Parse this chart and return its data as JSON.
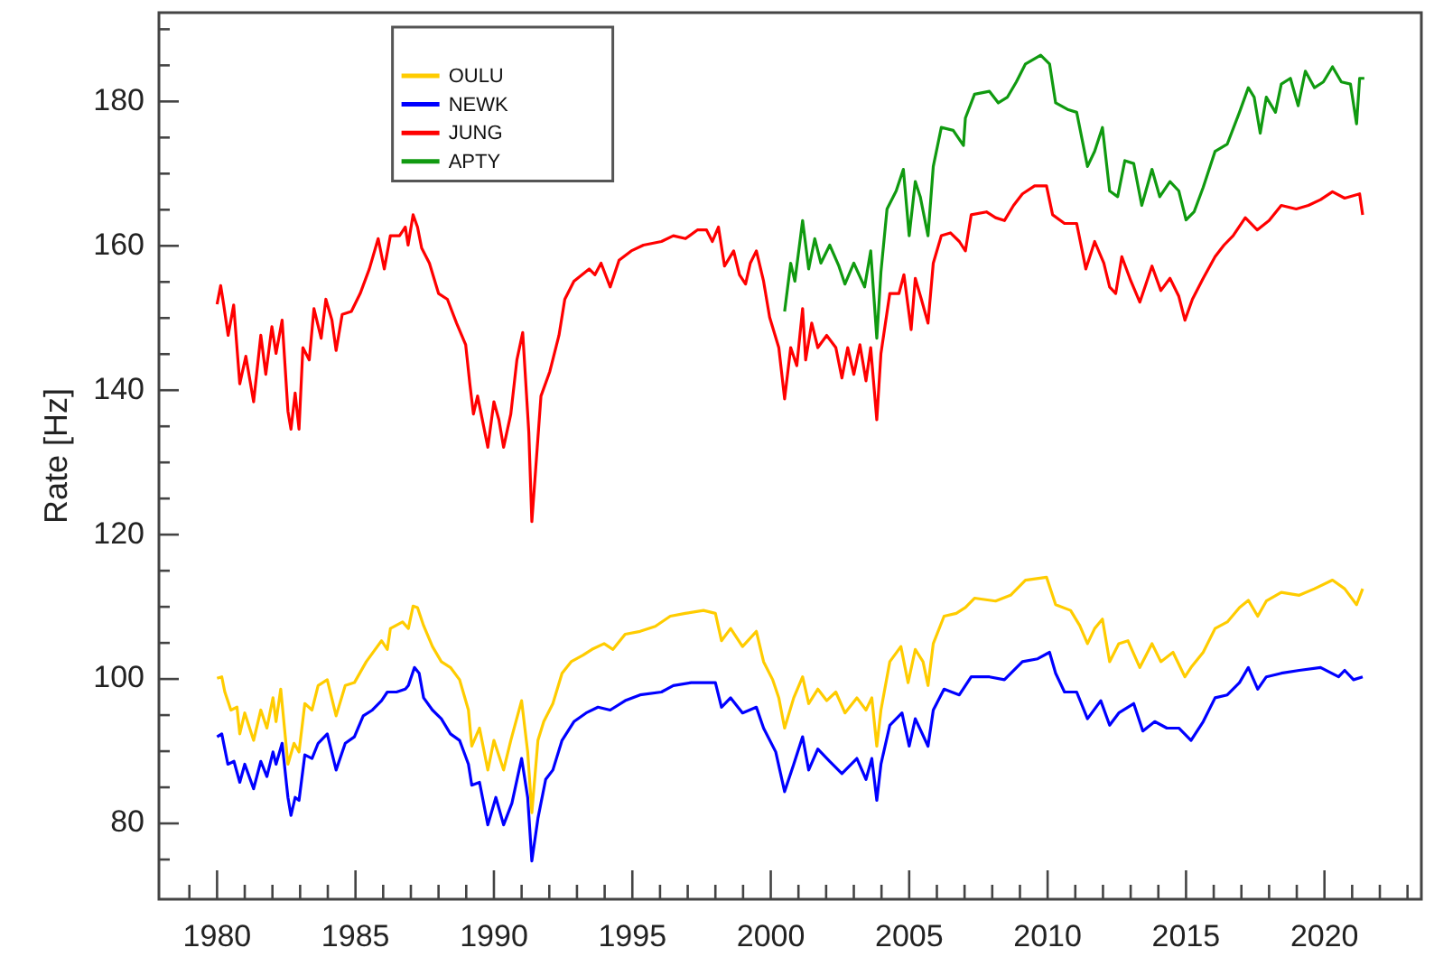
{
  "chart_data": {
    "type": "line",
    "ylabel": "Rate [Hz]",
    "legend": "top left",
    "marker": "none",
    "line_style": "solid",
    "xlim": [
      1977.9,
      2023.5
    ],
    "ylim": [
      69.5,
      192.3
    ],
    "xticks": [
      {
        "value": 1979,
        "label": null
      },
      1980,
      {
        "value": 1981,
        "label": null
      },
      {
        "value": 1982,
        "label": null
      },
      {
        "value": 1983,
        "label": null
      },
      {
        "value": 1984,
        "label": null
      },
      1985,
      {
        "value": 1986,
        "label": null
      },
      {
        "value": 1987,
        "label": null
      },
      {
        "value": 1988,
        "label": null
      },
      {
        "value": 1989,
        "label": null
      },
      1990,
      {
        "value": 1991,
        "label": null
      },
      {
        "value": 1992,
        "label": null
      },
      {
        "value": 1993,
        "label": null
      },
      {
        "value": 1994,
        "label": null
      },
      1995,
      {
        "value": 1996,
        "label": null
      },
      {
        "value": 1997,
        "label": null
      },
      {
        "value": 1998,
        "label": null
      },
      {
        "value": 1999,
        "label": null
      },
      2000,
      {
        "value": 2001,
        "label": null
      },
      {
        "value": 2002,
        "label": null
      },
      {
        "value": 2003,
        "label": null
      },
      {
        "value": 2004,
        "label": null
      },
      2005,
      {
        "value": 2006,
        "label": null
      },
      {
        "value": 2007,
        "label": null
      },
      {
        "value": 2008,
        "label": null
      },
      {
        "value": 2009,
        "label": null
      },
      2010,
      {
        "value": 2011,
        "label": null
      },
      {
        "value": 2012,
        "label": null
      },
      {
        "value": 2013,
        "label": null
      },
      {
        "value": 2014,
        "label": null
      },
      2015,
      {
        "value": 2016,
        "label": null
      },
      {
        "value": 2017,
        "label": null
      },
      {
        "value": 2018,
        "label": null
      },
      {
        "value": 2019,
        "label": null
      },
      2020,
      {
        "value": 2021,
        "label": null
      },
      {
        "value": 2022,
        "label": null
      },
      {
        "value": 2023,
        "label": null
      }
    ],
    "yticks": [
      {
        "value": 75,
        "label": null
      },
      80,
      {
        "value": 85,
        "label": null
      },
      {
        "value": 90,
        "label": null
      },
      {
        "value": 95,
        "label": null
      },
      100,
      {
        "value": 105,
        "label": null
      },
      {
        "value": 110,
        "label": null
      },
      {
        "value": 115,
        "label": null
      },
      120,
      {
        "value": 125,
        "label": null
      },
      {
        "value": 130,
        "label": null
      },
      {
        "value": 135,
        "label": null
      },
      140,
      {
        "value": 145,
        "label": null
      },
      {
        "value": 150,
        "label": null
      },
      {
        "value": 155,
        "label": null
      },
      160,
      {
        "value": 165,
        "label": null
      },
      {
        "value": 170,
        "label": null
      },
      {
        "value": 175,
        "label": null
      },
      180,
      {
        "value": 185,
        "label": null
      },
      {
        "value": 190,
        "label": null
      }
    ],
    "series": [
      {
        "name": "OULU",
        "color": "#ffcc00",
        "x": [
          1980.0,
          1980.17,
          1980.28,
          1980.5,
          1980.72,
          1980.82,
          1981.0,
          1981.32,
          1981.58,
          1981.8,
          1982.02,
          1982.13,
          1982.3,
          1982.56,
          1982.78,
          1982.96,
          1983.17,
          1983.43,
          1983.65,
          1983.98,
          1984.3,
          1984.63,
          1984.96,
          1985.39,
          1985.71,
          1985.94,
          1986.15,
          1986.26,
          1986.7,
          1986.91,
          1987.08,
          1987.24,
          1987.46,
          1987.78,
          1988.1,
          1988.43,
          1988.76,
          1989.08,
          1989.2,
          1989.48,
          1989.78,
          1990.0,
          1990.35,
          1990.61,
          1991.0,
          1991.22,
          1991.37,
          1991.59,
          1991.8,
          1992.13,
          1992.46,
          1992.79,
          1993.22,
          1993.54,
          1993.98,
          1994.3,
          1994.74,
          1995.28,
          1995.83,
          1996.37,
          1996.91,
          1997.57,
          1998.0,
          1998.22,
          1998.55,
          1998.98,
          1999.48,
          1999.74,
          2000.07,
          2000.29,
          2000.5,
          2000.83,
          2001.15,
          2001.37,
          2001.7,
          2002.02,
          2002.35,
          2002.68,
          2003.11,
          2003.44,
          2003.65,
          2003.83,
          2003.98,
          2004.3,
          2004.7,
          2004.96,
          2005.22,
          2005.5,
          2005.68,
          2005.87,
          2006.26,
          2006.7,
          2007.03,
          2007.36,
          2008.12,
          2008.66,
          2009.2,
          2009.96,
          2010.29,
          2010.83,
          2011.16,
          2011.44,
          2011.7,
          2011.98,
          2012.24,
          2012.57,
          2012.9,
          2013.33,
          2013.77,
          2014.09,
          2014.53,
          2014.96,
          2015.18,
          2015.62,
          2016.05,
          2016.49,
          2016.93,
          2017.25,
          2017.59,
          2017.9,
          2018.44,
          2019.09,
          2019.64,
          2020.29,
          2020.73,
          2021.16,
          2021.38
        ],
        "values": [
          100.1,
          100.3,
          98.2,
          95.7,
          96.1,
          92.4,
          95.3,
          91.5,
          95.7,
          93.2,
          97.4,
          94.1,
          98.6,
          88.2,
          91.1,
          89.9,
          96.6,
          95.7,
          99.1,
          99.9,
          94.9,
          99.1,
          99.5,
          102.4,
          104.1,
          105.3,
          104.1,
          107.0,
          107.9,
          107.0,
          110.1,
          109.9,
          107.4,
          104.5,
          102.4,
          101.6,
          99.9,
          95.7,
          90.7,
          93.2,
          87.4,
          91.5,
          87.4,
          91.5,
          97.0,
          89.9,
          81.5,
          91.5,
          94.1,
          96.6,
          100.8,
          102.4,
          103.3,
          104.1,
          104.9,
          104.1,
          106.2,
          106.6,
          107.3,
          108.7,
          109.1,
          109.5,
          109.1,
          105.3,
          107.0,
          104.5,
          106.6,
          102.4,
          99.9,
          97.4,
          93.2,
          97.4,
          100.3,
          96.6,
          98.6,
          97.0,
          98.2,
          95.3,
          97.4,
          95.7,
          97.4,
          90.7,
          95.7,
          102.4,
          104.5,
          99.5,
          104.1,
          102.4,
          99.1,
          104.9,
          108.7,
          109.1,
          109.9,
          111.2,
          110.8,
          111.6,
          113.7,
          114.1,
          110.3,
          109.5,
          107.4,
          104.9,
          107.0,
          108.3,
          102.4,
          104.9,
          105.3,
          101.6,
          104.9,
          102.4,
          103.7,
          100.3,
          101.6,
          103.7,
          107.0,
          107.9,
          109.9,
          110.9,
          108.7,
          110.8,
          112.0,
          111.6,
          112.5,
          113.7,
          112.5,
          110.3,
          112.5
        ]
      },
      {
        "name": "NEWK",
        "color": "#0000ff",
        "x": [
          1980.0,
          1980.17,
          1980.39,
          1980.61,
          1980.82,
          1981.0,
          1981.32,
          1981.58,
          1981.8,
          1982.02,
          1982.13,
          1982.35,
          1982.56,
          1982.67,
          1982.82,
          1982.96,
          1983.17,
          1983.43,
          1983.65,
          1983.98,
          1984.3,
          1984.63,
          1984.96,
          1985.28,
          1985.61,
          1985.94,
          1986.15,
          1986.48,
          1986.8,
          1986.91,
          1987.13,
          1987.3,
          1987.46,
          1987.78,
          1988.1,
          1988.43,
          1988.76,
          1989.08,
          1989.2,
          1989.48,
          1989.78,
          1990.07,
          1990.35,
          1990.65,
          1991.0,
          1991.22,
          1991.37,
          1991.59,
          1991.87,
          1992.13,
          1992.46,
          1992.89,
          1993.33,
          1993.76,
          1994.2,
          1994.74,
          1995.28,
          1996.05,
          1996.48,
          1997.13,
          1998.0,
          1998.22,
          1998.55,
          1998.98,
          1999.48,
          1999.74,
          2000.18,
          2000.5,
          2000.83,
          2001.15,
          2001.37,
          2001.7,
          2002.13,
          2002.57,
          2003.11,
          2003.44,
          2003.65,
          2003.83,
          2003.98,
          2004.3,
          2004.74,
          2005.0,
          2005.22,
          2005.68,
          2005.87,
          2006.26,
          2006.81,
          2007.24,
          2007.9,
          2008.44,
          2009.09,
          2009.64,
          2010.07,
          2010.29,
          2010.61,
          2011.05,
          2011.44,
          2011.92,
          2012.24,
          2012.57,
          2013.11,
          2013.44,
          2013.87,
          2014.31,
          2014.74,
          2015.18,
          2015.62,
          2016.05,
          2016.49,
          2016.93,
          2017.25,
          2017.59,
          2017.9,
          2018.44,
          2019.09,
          2019.86,
          2020.51,
          2020.73,
          2021.05,
          2021.38
        ],
        "values": [
          92.0,
          92.4,
          88.2,
          88.6,
          85.7,
          88.2,
          84.8,
          88.6,
          86.5,
          89.9,
          88.2,
          91.1,
          83.6,
          81.1,
          83.6,
          83.2,
          89.5,
          89.0,
          91.1,
          92.4,
          87.4,
          91.1,
          92.0,
          94.9,
          95.7,
          97.0,
          98.2,
          98.2,
          98.6,
          99.1,
          101.6,
          100.8,
          97.4,
          95.7,
          94.5,
          92.4,
          91.5,
          88.2,
          85.3,
          85.7,
          79.8,
          83.6,
          79.8,
          82.8,
          89.0,
          83.6,
          74.8,
          80.7,
          86.1,
          87.4,
          91.5,
          94.1,
          95.3,
          96.1,
          95.7,
          97.0,
          97.8,
          98.2,
          99.1,
          99.5,
          99.5,
          96.1,
          97.4,
          95.3,
          96.1,
          93.2,
          89.9,
          84.4,
          88.2,
          92.0,
          87.4,
          90.3,
          88.6,
          86.9,
          89.0,
          86.1,
          89.0,
          83.2,
          88.2,
          93.6,
          95.3,
          90.7,
          94.5,
          90.7,
          95.7,
          98.6,
          97.8,
          100.3,
          100.3,
          99.9,
          102.4,
          102.8,
          103.7,
          100.8,
          98.2,
          98.2,
          94.5,
          97.0,
          93.6,
          95.3,
          96.6,
          92.8,
          94.1,
          93.2,
          93.2,
          91.5,
          94.1,
          97.4,
          97.8,
          99.5,
          101.6,
          98.6,
          100.3,
          100.8,
          101.2,
          101.6,
          100.3,
          101.2,
          99.9,
          100.3
        ]
      },
      {
        "name": "JUNG",
        "color": "#ff0000",
        "x": [
          1980.0,
          1980.13,
          1980.24,
          1980.4,
          1980.6,
          1980.82,
          1981.04,
          1981.32,
          1981.58,
          1981.76,
          1981.98,
          1982.13,
          1982.35,
          1982.56,
          1982.67,
          1982.82,
          1982.96,
          1983.1,
          1983.33,
          1983.5,
          1983.76,
          1983.93,
          1984.15,
          1984.3,
          1984.52,
          1984.85,
          1985.17,
          1985.5,
          1985.82,
          1986.04,
          1986.26,
          1986.59,
          1986.8,
          1986.9,
          1987.08,
          1987.24,
          1987.39,
          1987.67,
          1988.0,
          1988.32,
          1988.65,
          1988.98,
          1989.13,
          1989.26,
          1989.41,
          1989.78,
          1990.0,
          1990.18,
          1990.35,
          1990.61,
          1990.83,
          1991.04,
          1991.26,
          1991.37,
          1991.7,
          1992.02,
          1992.35,
          1992.56,
          1992.89,
          1993.44,
          1993.65,
          1993.87,
          1994.2,
          1994.52,
          1994.96,
          1995.4,
          1996.05,
          1996.48,
          1996.92,
          1997.35,
          1997.68,
          1997.89,
          1998.11,
          1998.33,
          1998.66,
          1998.87,
          1999.09,
          1999.26,
          1999.48,
          1999.74,
          1999.96,
          2000.29,
          2000.5,
          2000.72,
          2000.94,
          2001.15,
          2001.26,
          2001.48,
          2001.7,
          2002.02,
          2002.35,
          2002.57,
          2002.78,
          2003.0,
          2003.22,
          2003.44,
          2003.61,
          2003.83,
          2003.98,
          2004.3,
          2004.63,
          2004.81,
          2005.07,
          2005.22,
          2005.44,
          2005.68,
          2005.87,
          2006.16,
          2006.49,
          2006.81,
          2007.03,
          2007.24,
          2007.79,
          2008.12,
          2008.44,
          2008.77,
          2009.09,
          2009.53,
          2009.96,
          2010.18,
          2010.61,
          2011.05,
          2011.38,
          2011.7,
          2012.03,
          2012.24,
          2012.46,
          2012.68,
          2013.01,
          2013.33,
          2013.77,
          2014.09,
          2014.42,
          2014.74,
          2014.96,
          2015.23,
          2015.62,
          2016.05,
          2016.37,
          2016.7,
          2017.14,
          2017.57,
          2018.0,
          2018.44,
          2018.98,
          2019.42,
          2019.86,
          2020.29,
          2020.73,
          2021.27,
          2021.38
        ],
        "values": [
          151.9,
          154.5,
          151.8,
          147.6,
          151.8,
          140.9,
          144.7,
          138.4,
          147.6,
          142.2,
          148.8,
          145.1,
          149.7,
          137.1,
          134.6,
          139.6,
          134.6,
          145.9,
          144.2,
          151.3,
          147.2,
          152.6,
          149.7,
          145.5,
          150.5,
          150.9,
          153.4,
          156.8,
          161.0,
          156.8,
          161.4,
          161.4,
          162.6,
          160.1,
          164.3,
          162.6,
          159.7,
          157.6,
          153.4,
          152.6,
          149.3,
          146.3,
          140.9,
          136.7,
          139.2,
          132.1,
          138.4,
          135.9,
          132.1,
          136.7,
          144.2,
          148.0,
          134.2,
          121.8,
          139.2,
          142.6,
          147.6,
          152.6,
          155.1,
          156.8,
          156.0,
          157.6,
          154.3,
          158.0,
          159.3,
          160.1,
          160.6,
          161.4,
          161.0,
          162.2,
          162.2,
          160.6,
          162.6,
          157.2,
          159.3,
          156.0,
          154.7,
          157.6,
          159.3,
          155.1,
          150.1,
          145.9,
          138.8,
          145.9,
          143.4,
          151.3,
          144.2,
          149.3,
          145.9,
          147.6,
          145.9,
          141.7,
          145.9,
          142.2,
          146.3,
          141.3,
          145.9,
          135.9,
          145.1,
          153.4,
          153.4,
          156.0,
          148.4,
          155.5,
          152.6,
          149.3,
          157.6,
          161.4,
          161.8,
          160.6,
          159.3,
          164.3,
          164.7,
          163.9,
          163.5,
          165.6,
          167.2,
          168.3,
          168.3,
          164.3,
          163.1,
          163.1,
          156.8,
          160.6,
          157.6,
          154.3,
          153.4,
          158.5,
          155.1,
          152.2,
          157.2,
          153.8,
          155.5,
          153.0,
          149.7,
          152.6,
          155.5,
          158.5,
          160.1,
          161.4,
          163.9,
          162.2,
          163.5,
          165.6,
          165.1,
          165.6,
          166.4,
          167.5,
          166.6,
          167.2,
          164.3
        ]
      },
      {
        "name": "APTY",
        "color": "#109a10",
        "x": [
          2000.5,
          2000.72,
          2000.87,
          2001.15,
          2001.37,
          2001.59,
          2001.81,
          2002.13,
          2002.46,
          2002.68,
          2003.0,
          2003.39,
          2003.61,
          2003.83,
          2003.98,
          2004.2,
          2004.53,
          2004.79,
          2005.0,
          2005.22,
          2005.4,
          2005.68,
          2005.87,
          2006.16,
          2006.59,
          2006.96,
          2007.03,
          2007.36,
          2007.9,
          2008.22,
          2008.55,
          2008.87,
          2009.2,
          2009.75,
          2010.07,
          2010.29,
          2010.72,
          2011.05,
          2011.44,
          2011.7,
          2011.98,
          2012.24,
          2012.53,
          2012.79,
          2013.11,
          2013.4,
          2013.77,
          2014.05,
          2014.42,
          2014.74,
          2015.0,
          2015.29,
          2015.62,
          2016.05,
          2016.49,
          2016.93,
          2017.25,
          2017.46,
          2017.68,
          2017.9,
          2018.23,
          2018.44,
          2018.77,
          2019.05,
          2019.31,
          2019.64,
          2019.96,
          2020.29,
          2020.61,
          2020.94,
          2021.16,
          2021.27,
          2021.44
        ],
        "values": [
          150.9,
          157.6,
          155.1,
          163.5,
          156.8,
          161.0,
          157.6,
          160.1,
          157.2,
          154.7,
          157.6,
          154.3,
          159.3,
          147.2,
          156.4,
          165.1,
          167.6,
          170.6,
          161.4,
          168.9,
          166.8,
          161.4,
          171.0,
          176.4,
          176.0,
          173.9,
          177.7,
          181.0,
          181.4,
          179.8,
          180.6,
          182.7,
          185.2,
          186.4,
          185.2,
          179.8,
          178.9,
          178.5,
          171.0,
          173.1,
          176.4,
          167.6,
          166.8,
          171.8,
          171.4,
          165.6,
          170.6,
          166.8,
          168.9,
          167.6,
          163.6,
          164.7,
          168.1,
          173.1,
          174.1,
          178.5,
          181.9,
          180.6,
          175.6,
          180.6,
          178.5,
          182.4,
          183.2,
          179.4,
          184.2,
          181.9,
          182.7,
          184.8,
          182.7,
          182.4,
          176.9,
          183.2,
          183.2
        ]
      }
    ]
  }
}
